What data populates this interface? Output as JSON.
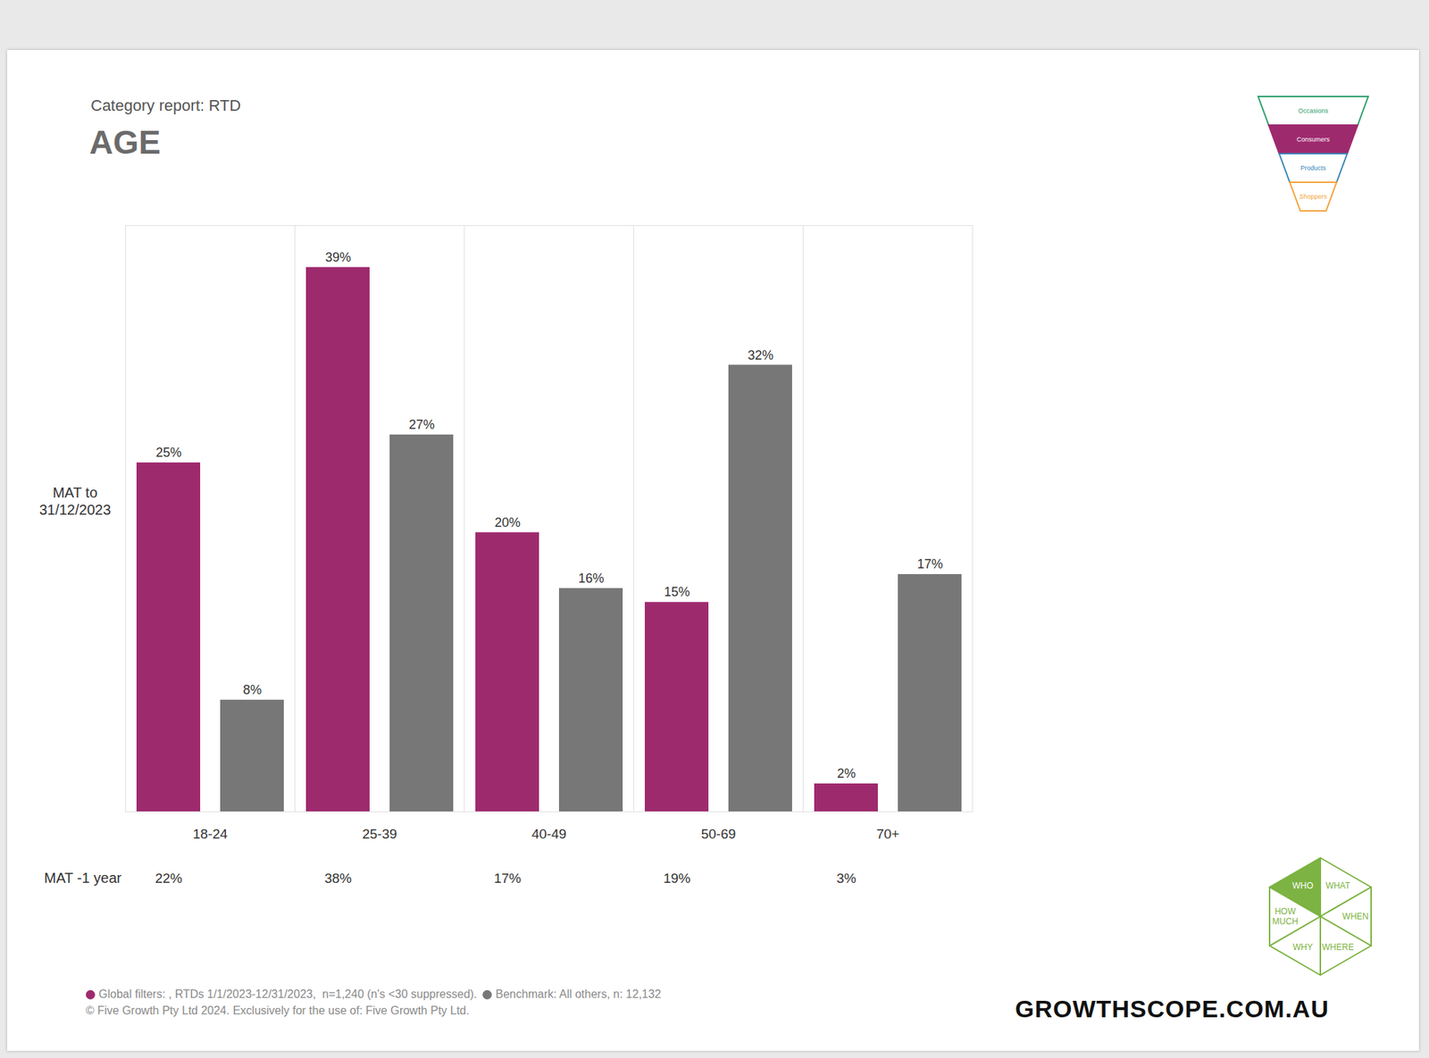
{
  "chart_data": {
    "type": "bar",
    "subtitle": "Category report: RTD",
    "title": "AGE",
    "row_label": "MAT to 31/12/2023",
    "categories": [
      "18-24",
      "25-39",
      "40-49",
      "50-69",
      "70+"
    ],
    "series": [
      {
        "name": "Global filters: , RTDs 1/1/2023-12/31/2023,  n=1,240 (n's <30 suppressed).",
        "color": "#9e2a6e",
        "values": [
          25,
          39,
          20,
          15,
          2
        ],
        "value_labels": [
          "25%",
          "39%",
          "20%",
          "15%",
          "2%"
        ]
      },
      {
        "name": "Benchmark: All others, n: 12,132",
        "color": "#777777",
        "values": [
          8,
          27,
          16,
          32,
          17
        ],
        "value_labels": [
          "8%",
          "27%",
          "16%",
          "32%",
          "17%"
        ]
      }
    ],
    "prior_year": {
      "label": "MAT -1 year",
      "values": [
        22,
        38,
        17,
        19,
        3
      ],
      "value_labels": [
        "22%",
        "38%",
        "17%",
        "19%",
        "3%"
      ]
    },
    "ylim": [
      0,
      42
    ],
    "yticks": [],
    "tick_labels": "x",
    "data_labels": true,
    "grid": true,
    "legend": "bottom-left"
  },
  "footer": {
    "copyright": "© Five Growth Pty Ltd 2024. Exclusively for the use of: Five Growth Pty Ltd.",
    "logo": "GROWTHSCOPE.COM.AU"
  },
  "funnel": {
    "stages": [
      "Occasions",
      "Consumers",
      "Products",
      "Shoppers"
    ],
    "active": "Consumers"
  },
  "hexagon": {
    "segments": [
      "WHO",
      "WHAT",
      "WHEN",
      "WHERE",
      "WHY",
      "HOW MUCH"
    ],
    "active": "WHO"
  }
}
